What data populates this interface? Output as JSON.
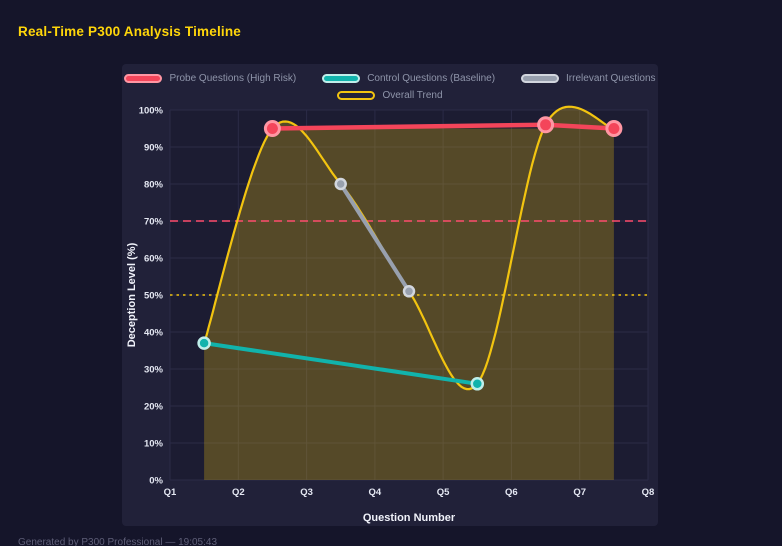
{
  "title": "Real-Time P300 Analysis Timeline",
  "footer": "Generated by P300 Professional — 19:05:43",
  "chart_data": {
    "type": "line",
    "title": "Real-Time P300 Analysis Timeline",
    "xlabel": "Question Number",
    "ylabel": "Deception Level (%)",
    "x_ticks": [
      "Q1",
      "Q2",
      "Q3",
      "Q4",
      "Q5",
      "Q6",
      "Q7",
      "Q8"
    ],
    "x_range": [
      1,
      8
    ],
    "y_ticks": [
      "0%",
      "10%",
      "20%",
      "30%",
      "40%",
      "50%",
      "60%",
      "70%",
      "80%",
      "90%",
      "100%"
    ],
    "y_range": [
      0,
      100
    ],
    "grid": true,
    "grid_color": "#2b2b47",
    "plot_bg": "#1c1c32",
    "legend_position": "top",
    "series": [
      {
        "name": "Probe Questions (High Risk)",
        "color": "#f4455a",
        "ring": "#ff96a3",
        "line_width": 4.5,
        "marker_radius": 7,
        "marker_stroke": 3,
        "legend_row": 1,
        "swatch": "solid",
        "points": [
          {
            "x": 2.5,
            "y": 95
          },
          {
            "x": 6.5,
            "y": 96
          },
          {
            "x": 7.5,
            "y": 95
          }
        ]
      },
      {
        "name": "Control Questions (Baseline)",
        "color": "#11b3ac",
        "ring": "#bfeeea",
        "line_width": 4,
        "marker_radius": 5.5,
        "marker_stroke": 2.5,
        "legend_row": 1,
        "swatch": "solid",
        "points": [
          {
            "x": 1.5,
            "y": 37
          },
          {
            "x": 5.5,
            "y": 26
          }
        ]
      },
      {
        "name": "Irrelevant Questions",
        "color": "#98a0ae",
        "ring": "#d2d6de",
        "line_width": 4,
        "marker_radius": 5,
        "marker_stroke": 2.5,
        "legend_row": 1,
        "swatch": "solid",
        "points": [
          {
            "x": 3.5,
            "y": 80
          },
          {
            "x": 4.5,
            "y": 51
          }
        ]
      },
      {
        "name": "Overall Trend",
        "color": "#f2c410",
        "line_width": 2.2,
        "smooth": true,
        "fill": true,
        "legend_row": 2,
        "swatch": "outline",
        "points": [
          {
            "x": 1.5,
            "y": 37
          },
          {
            "x": 2.5,
            "y": 95
          },
          {
            "x": 3.5,
            "y": 80
          },
          {
            "x": 4.5,
            "y": 51
          },
          {
            "x": 5.5,
            "y": 26
          },
          {
            "x": 6.5,
            "y": 96
          },
          {
            "x": 7.5,
            "y": 95
          }
        ]
      }
    ],
    "thresholds": [
      {
        "value": 70,
        "color": "#ff4d6d",
        "style": "dashed"
      },
      {
        "value": 50,
        "color": "#f2c410",
        "style": "dotted"
      }
    ],
    "fill_band": {
      "x_start": 1.5,
      "x_end": 7.5,
      "y_top": 95,
      "flat_from": 2.5,
      "color": "rgba(242,196,16,0.27)"
    }
  }
}
